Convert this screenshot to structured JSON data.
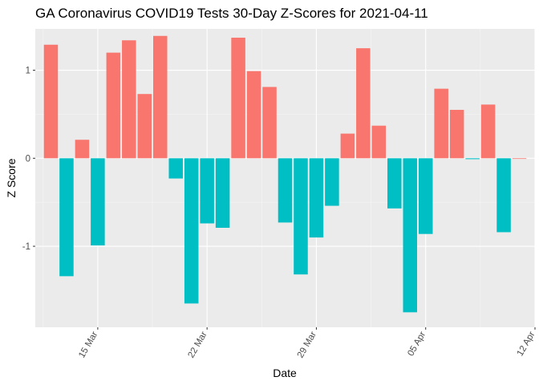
{
  "chart_data": {
    "type": "bar",
    "title": "GA Coronavirus COVID19 Tests 30-Day Z-Scores for 2021-04-11",
    "xlabel": "Date",
    "ylabel": "Z Score",
    "x_tick_labels": [
      "15 Mar",
      "22 Mar",
      "29 Mar",
      "05 Apr",
      "12 Apr"
    ],
    "y_tick_labels": [
      "-1",
      "0",
      "1"
    ],
    "y_ticks": [
      -1,
      0,
      1
    ],
    "ylim": [
      -1.92,
      1.47
    ],
    "xlim": [
      "2021-03-11",
      "2021-04-12"
    ],
    "grid": true,
    "legend": "none",
    "colors": {
      "positive": "#F8766D",
      "negative": "#00BFC4",
      "panel": "#EBEBEB",
      "grid_major": "#FFFFFF",
      "grid_minor": "#F5F5F5"
    },
    "dates": [
      "2021-03-12",
      "2021-03-13",
      "2021-03-14",
      "2021-03-15",
      "2021-03-16",
      "2021-03-17",
      "2021-03-18",
      "2021-03-19",
      "2021-03-20",
      "2021-03-21",
      "2021-03-22",
      "2021-03-23",
      "2021-03-24",
      "2021-03-25",
      "2021-03-26",
      "2021-03-27",
      "2021-03-28",
      "2021-03-29",
      "2021-03-30",
      "2021-03-31",
      "2021-04-01",
      "2021-04-02",
      "2021-04-03",
      "2021-04-04",
      "2021-04-05",
      "2021-04-06",
      "2021-04-07",
      "2021-04-08",
      "2021-04-09",
      "2021-04-10",
      "2021-04-11"
    ],
    "values": [
      1.29,
      -1.34,
      0.21,
      -0.99,
      1.2,
      1.34,
      0.73,
      1.39,
      -0.23,
      -1.65,
      -0.74,
      -0.79,
      1.37,
      0.99,
      0.81,
      -0.73,
      -1.32,
      -0.9,
      -0.54,
      0.28,
      1.25,
      0.37,
      -0.57,
      -1.75,
      -0.86,
      0.79,
      0.55,
      -0.01,
      0.61,
      -0.84,
      0
    ]
  }
}
